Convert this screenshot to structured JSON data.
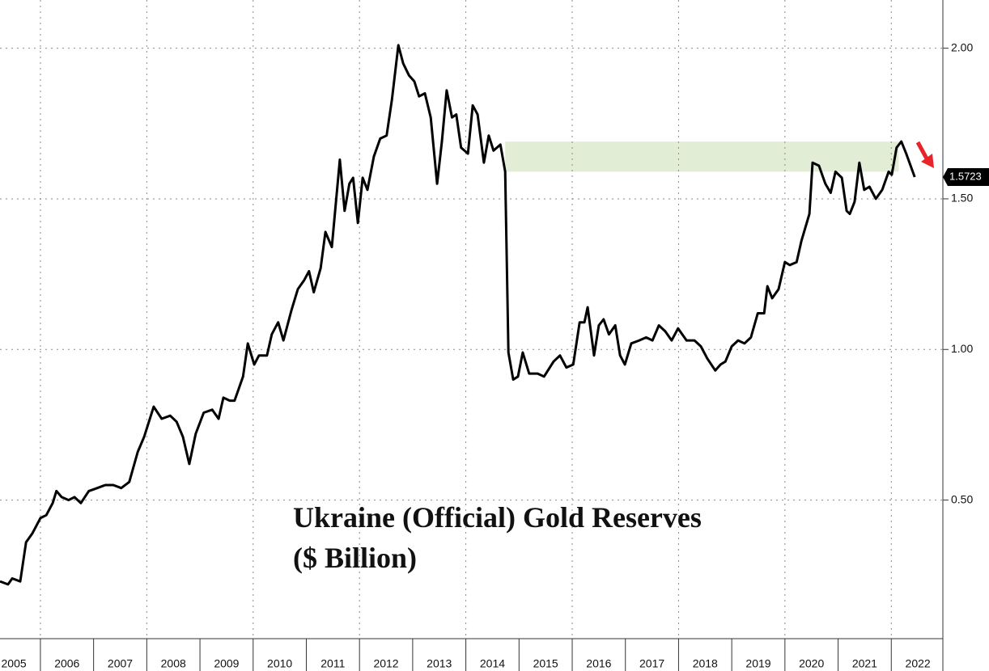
{
  "chart_data": {
    "type": "line",
    "title": "Ukraine (Official) Gold Reserves",
    "subtitle": "($ Billion)",
    "x": [
      2005.24,
      2005.39,
      2005.47,
      2005.62,
      2005.73,
      2005.85,
      2006.0,
      2006.11,
      2006.23,
      2006.3,
      2006.4,
      2006.53,
      2006.64,
      2006.76,
      2006.91,
      2007.07,
      2007.22,
      2007.37,
      2007.52,
      2007.67,
      2007.83,
      2007.95,
      2008.13,
      2008.28,
      2008.44,
      2008.56,
      2008.68,
      2008.8,
      2008.92,
      2009.07,
      2009.23,
      2009.35,
      2009.44,
      2009.56,
      2009.65,
      2009.81,
      2009.9,
      2010.02,
      2010.11,
      2010.26,
      2010.35,
      2010.47,
      2010.57,
      2010.72,
      2010.84,
      2010.96,
      2011.05,
      2011.14,
      2011.27,
      2011.36,
      2011.48,
      2011.63,
      2011.72,
      2011.81,
      2011.88,
      2011.97,
      2012.06,
      2012.15,
      2012.27,
      2012.39,
      2012.51,
      2012.61,
      2012.73,
      2012.82,
      2012.93,
      2013.03,
      2013.12,
      2013.23,
      2013.34,
      2013.46,
      2013.55,
      2013.64,
      2013.74,
      2013.82,
      2013.91,
      2014.04,
      2014.13,
      2014.22,
      2014.34,
      2014.43,
      2014.52,
      2014.65,
      2014.74,
      2014.8,
      2014.89,
      2014.98,
      2015.07,
      2015.19,
      2015.35,
      2015.47,
      2015.65,
      2015.77,
      2015.89,
      2016.02,
      2016.14,
      2016.23,
      2016.29,
      2016.41,
      2016.5,
      2016.59,
      2016.69,
      2016.81,
      2016.9,
      2016.99,
      2017.11,
      2017.26,
      2017.39,
      2017.51,
      2017.63,
      2017.75,
      2017.87,
      2017.99,
      2018.15,
      2018.3,
      2018.42,
      2018.54,
      2018.69,
      2018.79,
      2018.88,
      2019.0,
      2019.12,
      2019.24,
      2019.36,
      2019.49,
      2019.61,
      2019.67,
      2019.76,
      2019.88,
      2020.0,
      2020.09,
      2020.22,
      2020.31,
      2020.46,
      2020.52,
      2020.64,
      2020.76,
      2020.86,
      2020.95,
      2021.07,
      2021.16,
      2021.22,
      2021.31,
      2021.4,
      2021.49,
      2021.59,
      2021.71,
      2021.83,
      2021.95,
      2022.01,
      2022.1,
      2022.19,
      2022.28,
      2022.44
    ],
    "series": [
      {
        "name": "Ukraine Gold Reserves",
        "color": "#000000",
        "values": [
          0.23,
          0.22,
          0.24,
          0.23,
          0.36,
          0.39,
          0.44,
          0.45,
          0.49,
          0.53,
          0.51,
          0.5,
          0.51,
          0.49,
          0.53,
          0.54,
          0.55,
          0.55,
          0.54,
          0.56,
          0.66,
          0.71,
          0.81,
          0.77,
          0.78,
          0.76,
          0.71,
          0.62,
          0.72,
          0.79,
          0.8,
          0.77,
          0.84,
          0.83,
          0.83,
          0.91,
          1.02,
          0.95,
          0.98,
          0.98,
          1.05,
          1.09,
          1.03,
          1.13,
          1.2,
          1.23,
          1.26,
          1.19,
          1.27,
          1.39,
          1.34,
          1.63,
          1.46,
          1.55,
          1.57,
          1.42,
          1.57,
          1.53,
          1.64,
          1.7,
          1.71,
          1.83,
          2.01,
          1.95,
          1.91,
          1.89,
          1.84,
          1.85,
          1.77,
          1.55,
          1.69,
          1.86,
          1.77,
          1.78,
          1.67,
          1.65,
          1.81,
          1.78,
          1.62,
          1.71,
          1.66,
          1.68,
          1.59,
          0.99,
          0.9,
          0.91,
          0.99,
          0.92,
          0.92,
          0.91,
          0.96,
          0.98,
          0.94,
          0.95,
          1.09,
          1.09,
          1.14,
          0.98,
          1.08,
          1.1,
          1.05,
          1.08,
          0.98,
          0.95,
          1.02,
          1.03,
          1.04,
          1.03,
          1.08,
          1.06,
          1.03,
          1.07,
          1.03,
          1.03,
          1.01,
          0.97,
          0.93,
          0.95,
          0.96,
          1.01,
          1.03,
          1.02,
          1.04,
          1.12,
          1.12,
          1.21,
          1.17,
          1.2,
          1.29,
          1.28,
          1.29,
          1.36,
          1.45,
          1.62,
          1.61,
          1.55,
          1.52,
          1.59,
          1.57,
          1.46,
          1.45,
          1.49,
          1.62,
          1.53,
          1.54,
          1.5,
          1.53,
          1.59,
          1.58,
          1.67,
          1.69,
          1.65,
          1.5723
        ]
      }
    ],
    "xlim": [
      2005.24,
      2022.97
    ],
    "xticks": [
      {
        "value": 2005.5,
        "label": "2005"
      },
      {
        "value": 2006.5,
        "label": "2006"
      },
      {
        "value": 2007.5,
        "label": "2007"
      },
      {
        "value": 2008.5,
        "label": "2008"
      },
      {
        "value": 2009.5,
        "label": "2009"
      },
      {
        "value": 2010.5,
        "label": "2010"
      },
      {
        "value": 2011.5,
        "label": "2011"
      },
      {
        "value": 2012.5,
        "label": "2012"
      },
      {
        "value": 2013.5,
        "label": "2013"
      },
      {
        "value": 2014.5,
        "label": "2014"
      },
      {
        "value": 2015.5,
        "label": "2015"
      },
      {
        "value": 2016.5,
        "label": "2016"
      },
      {
        "value": 2017.5,
        "label": "2017"
      },
      {
        "value": 2018.5,
        "label": "2018"
      },
      {
        "value": 2019.5,
        "label": "2019"
      },
      {
        "value": 2020.5,
        "label": "2020"
      },
      {
        "value": 2021.5,
        "label": "2021"
      },
      {
        "value": 2022.5,
        "label": "2022"
      }
    ],
    "ylim": [
      0.04,
      2.16
    ],
    "yticks": [
      {
        "value": 0.5,
        "label": "0.50"
      },
      {
        "value": 1,
        "label": "1.00"
      },
      {
        "value": 1.5,
        "label": "1.50"
      },
      {
        "value": 2,
        "label": "2.00"
      }
    ],
    "grid": true,
    "highlight": {
      "xlim": [
        2014.74,
        2022.14
      ],
      "ylim": [
        1.59,
        1.69
      ],
      "color": "#e2edd5"
    }
  }
}
